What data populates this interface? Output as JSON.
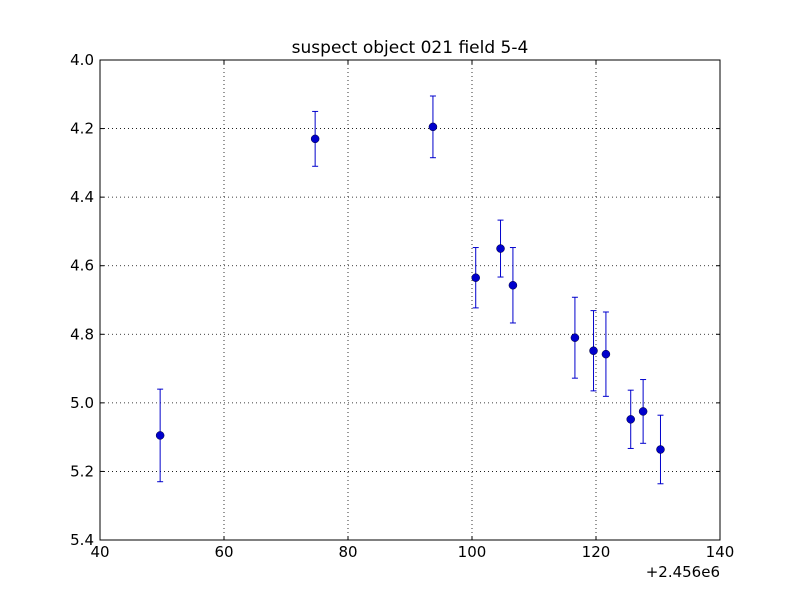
{
  "chart_data": {
    "type": "scatter",
    "title": "suspect object 021 field 5-4",
    "xlabel": "",
    "ylabel": "",
    "x_offset_label": "+2.456e6",
    "xlim": [
      40,
      140
    ],
    "ylim": [
      4.0,
      5.4
    ],
    "y_inverted": true,
    "grid": true,
    "legend": "none",
    "x_ticks": [
      "40",
      "60",
      "80",
      "100",
      "120",
      "140"
    ],
    "y_ticks": [
      "4.0",
      "4.2",
      "4.4",
      "4.6",
      "4.8",
      "5.0",
      "5.2",
      "5.4"
    ],
    "points": [
      {
        "x": 49.7,
        "y": 5.095,
        "yerr": 0.135
      },
      {
        "x": 74.7,
        "y": 4.23,
        "yerr": 0.08
      },
      {
        "x": 93.7,
        "y": 4.195,
        "yerr": 0.09
      },
      {
        "x": 100.6,
        "y": 4.635,
        "yerr": 0.088
      },
      {
        "x": 104.6,
        "y": 4.55,
        "yerr": 0.083
      },
      {
        "x": 106.6,
        "y": 4.657,
        "yerr": 0.11
      },
      {
        "x": 116.6,
        "y": 4.81,
        "yerr": 0.118
      },
      {
        "x": 119.6,
        "y": 4.848,
        "yerr": 0.117
      },
      {
        "x": 121.6,
        "y": 4.858,
        "yerr": 0.123
      },
      {
        "x": 125.6,
        "y": 5.048,
        "yerr": 0.085
      },
      {
        "x": 127.6,
        "y": 5.025,
        "yerr": 0.093
      },
      {
        "x": 130.4,
        "y": 5.136,
        "yerr": 0.1
      }
    ],
    "colors": {
      "marker": "#0000cc",
      "errorbar": "#0000cc",
      "grid": "#000000",
      "axes": "#000000"
    }
  }
}
